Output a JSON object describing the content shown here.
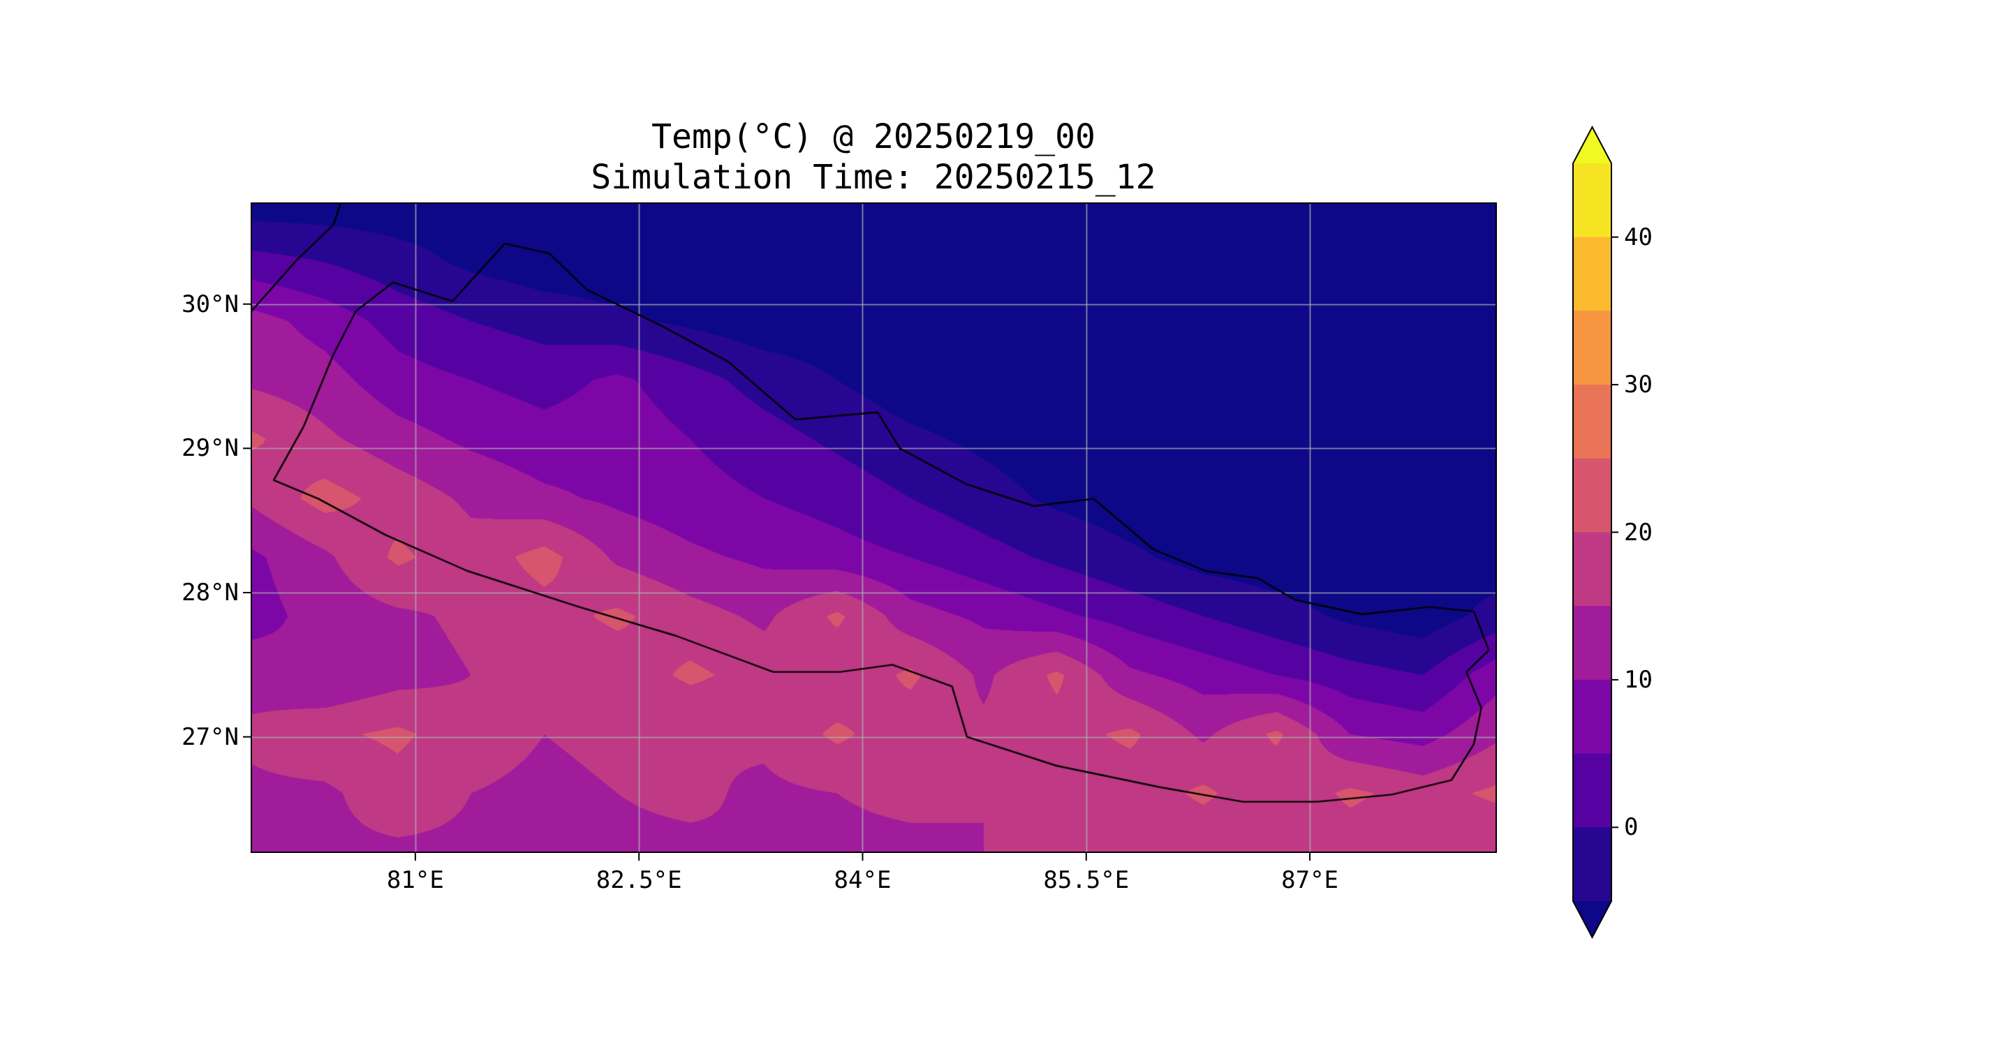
{
  "figure": {
    "title_line1": "Temp(°C) @ 20250219_00",
    "title_line2": "Simulation Time: 20250215_12"
  },
  "chart_data": {
    "type": "heatmap",
    "subtype": "filled-contour-map",
    "variable": "Temp(°C)",
    "valid_time": "20250219_00",
    "simulation_time": "20250215_12",
    "region": "Nepal",
    "lon_range": [
      79.9,
      88.25
    ],
    "lat_range": [
      26.2,
      30.7
    ],
    "x_ticks": [
      {
        "value": 81.0,
        "label": "81°E"
      },
      {
        "value": 82.5,
        "label": "82.5°E"
      },
      {
        "value": 84.0,
        "label": "84°E"
      },
      {
        "value": 85.5,
        "label": "85.5°E"
      },
      {
        "value": 87.0,
        "label": "87°E"
      }
    ],
    "y_ticks": [
      {
        "value": 30.0,
        "label": "30°N"
      },
      {
        "value": 29.0,
        "label": "29°N"
      },
      {
        "value": 28.0,
        "label": "28°N"
      },
      {
        "value": 27.0,
        "label": "27°N"
      }
    ],
    "levels": [
      -5,
      0,
      5,
      10,
      15,
      20,
      25,
      30,
      35,
      40,
      45
    ],
    "band_colors": [
      "#270692",
      "#5602a3",
      "#7d07a6",
      "#a01c9a",
      "#bf3984",
      "#d7566d",
      "#ea7457",
      "#f79541",
      "#fcba2e",
      "#f6e423"
    ],
    "under_color": "#0d0887",
    "over_color": "#f0f921",
    "grid_color": "#b2b2b2",
    "boundary_color": "#000000",
    "colorbar": {
      "ticks": [
        {
          "value": 0,
          "label": "0"
        },
        {
          "value": 10,
          "label": "10"
        },
        {
          "value": 20,
          "label": "20"
        },
        {
          "value": 30,
          "label": "30"
        },
        {
          "value": 40,
          "label": "40"
        }
      ],
      "min": -5,
      "max": 45,
      "extend": "both"
    },
    "grid_lons": [
      79.9,
      80.39,
      80.88,
      81.37,
      81.86,
      82.35,
      82.85,
      83.34,
      83.83,
      84.32,
      84.81,
      85.3,
      85.79,
      86.29,
      86.78,
      87.27,
      87.76,
      88.25
    ],
    "grid_lats": [
      30.7,
      30.29,
      29.88,
      29.48,
      29.07,
      28.66,
      28.25,
      27.84,
      27.43,
      27.02,
      26.61,
      26.2
    ],
    "temperature_grid": [
      [
        -8,
        -8,
        -8,
        -8,
        -8,
        -8,
        -8,
        -8,
        -8,
        -8,
        -8,
        -8,
        -8,
        -8,
        -8,
        -8,
        -8,
        -8
      ],
      [
        2,
        0,
        -3,
        -6,
        -8,
        -8,
        -8,
        -8,
        -8,
        -8,
        -8,
        -8,
        -8,
        -8,
        -8,
        -8,
        -8,
        -8
      ],
      [
        12,
        8,
        3,
        0,
        -2,
        -4,
        -6,
        -8,
        -8,
        -8,
        -8,
        -8,
        -8,
        -8,
        -8,
        -8,
        -8,
        -8
      ],
      [
        14,
        12,
        7,
        5,
        3,
        6,
        2,
        -2,
        -5,
        -8,
        -8,
        -8,
        -8,
        -8,
        -8,
        -8,
        -8,
        -8
      ],
      [
        21,
        16,
        12,
        9,
        7,
        8,
        5,
        2,
        -1,
        -4,
        -6,
        -8,
        -8,
        -8,
        -8,
        -8,
        -8,
        -8
      ],
      [
        16,
        22,
        18,
        14,
        11,
        9,
        7,
        5,
        3,
        0,
        -3,
        -6,
        -8,
        -8,
        -8,
        -8,
        -8,
        -8
      ],
      [
        9,
        14,
        21,
        17,
        22,
        14,
        11,
        9,
        7,
        5,
        2,
        -1,
        -4,
        -7,
        -8,
        -8,
        -8,
        -8
      ],
      [
        8,
        12,
        14,
        16,
        18,
        21,
        17,
        14,
        21,
        12,
        9,
        6,
        3,
        0,
        -3,
        -6,
        -8,
        -3
      ],
      [
        13,
        10,
        13,
        15,
        16,
        17,
        21,
        18,
        16,
        21,
        14,
        21,
        11,
        8,
        5,
        2,
        0,
        8
      ],
      [
        16,
        19,
        21,
        17,
        15,
        16,
        15,
        16,
        21,
        17,
        16,
        18,
        21,
        14,
        21,
        10,
        8,
        14
      ],
      [
        14,
        14,
        18,
        15,
        14,
        15,
        16,
        14,
        15,
        16,
        15,
        16,
        17,
        21,
        16,
        21,
        18,
        21
      ],
      [
        13,
        14,
        14,
        14,
        13,
        14,
        14,
        15,
        14,
        14,
        15,
        15,
        16,
        16,
        15,
        17,
        16,
        15
      ]
    ],
    "boundary_segments": [
      [
        [
          80.05,
          28.78
        ],
        [
          80.25,
          29.15
        ],
        [
          80.45,
          29.65
        ],
        [
          80.6,
          29.95
        ],
        [
          80.85,
          30.15
        ],
        [
          81.25,
          30.02
        ],
        [
          81.6,
          30.42
        ],
        [
          81.9,
          30.35
        ],
        [
          82.15,
          30.1
        ],
        [
          82.65,
          29.85
        ],
        [
          83.1,
          29.6
        ],
        [
          83.55,
          29.2
        ],
        [
          84.1,
          29.25
        ],
        [
          84.25,
          29.0
        ],
        [
          84.7,
          28.75
        ],
        [
          85.15,
          28.6
        ],
        [
          85.55,
          28.65
        ],
        [
          85.95,
          28.3
        ],
        [
          86.3,
          28.15
        ],
        [
          86.65,
          28.1
        ],
        [
          86.9,
          27.95
        ],
        [
          87.35,
          27.85
        ],
        [
          87.8,
          27.9
        ],
        [
          88.1,
          27.87
        ],
        [
          88.2,
          27.6
        ],
        [
          88.05,
          27.45
        ],
        [
          88.15,
          27.2
        ],
        [
          88.1,
          26.95
        ],
        [
          87.95,
          26.7
        ],
        [
          87.55,
          26.6
        ],
        [
          87.05,
          26.55
        ],
        [
          86.55,
          26.55
        ],
        [
          86.0,
          26.65
        ],
        [
          85.3,
          26.8
        ],
        [
          84.7,
          27.0
        ],
        [
          84.6,
          27.35
        ],
        [
          84.2,
          27.5
        ],
        [
          83.85,
          27.45
        ],
        [
          83.4,
          27.45
        ],
        [
          82.75,
          27.7
        ],
        [
          82.1,
          27.9
        ],
        [
          81.35,
          28.15
        ],
        [
          80.8,
          28.4
        ],
        [
          80.35,
          28.65
        ],
        [
          80.05,
          28.78
        ]
      ],
      [
        [
          79.9,
          29.95
        ],
        [
          80.2,
          30.3
        ],
        [
          80.45,
          30.55
        ],
        [
          80.5,
          30.7
        ]
      ]
    ]
  }
}
